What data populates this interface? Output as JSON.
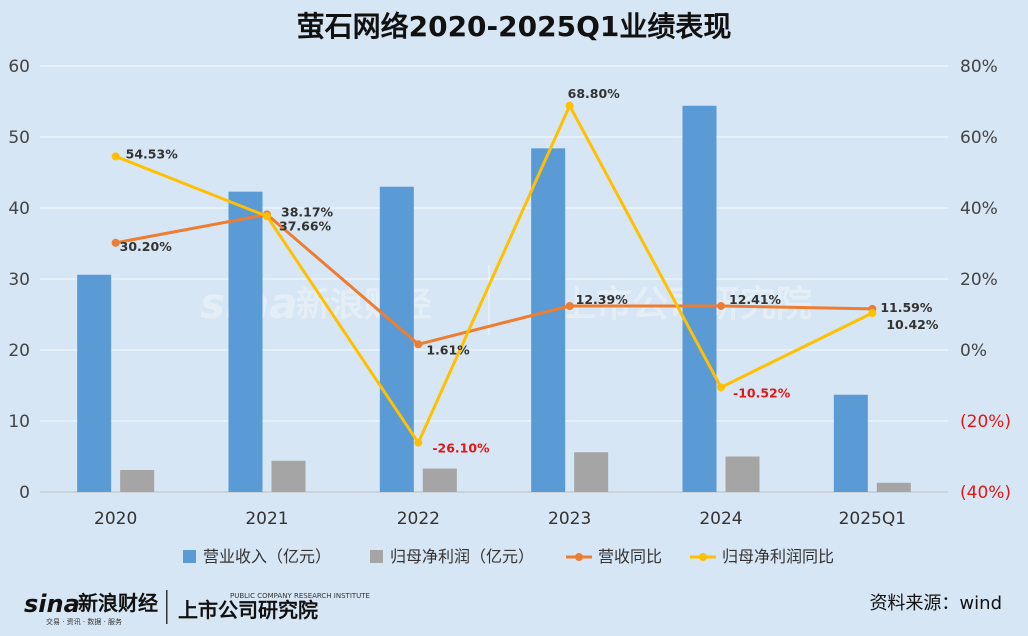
{
  "chart_data": {
    "type": "bar+line",
    "title": "萤石网络2020-2025Q1业绩表现",
    "categories": [
      "2020",
      "2021",
      "2022",
      "2023",
      "2024",
      "2025Q1"
    ],
    "left_axis": {
      "min": 0,
      "max": 60,
      "ticks": [
        "0",
        "10",
        "20",
        "30",
        "40",
        "50",
        "60"
      ]
    },
    "right_axis": {
      "min": -40,
      "max": 80,
      "ticks": [
        {
          "value": -40,
          "label": "(40%)"
        },
        {
          "value": -20,
          "label": "(20%)"
        },
        {
          "value": 0,
          "label": "0%"
        },
        {
          "value": 20,
          "label": "20%"
        },
        {
          "value": 40,
          "label": "40%"
        },
        {
          "value": 60,
          "label": "60%"
        },
        {
          "value": 80,
          "label": "80%"
        }
      ]
    },
    "grid": true,
    "legend_position": "bottom",
    "bar_series": [
      {
        "name": "营业收入（亿元）",
        "color": "#5b9bd5",
        "values": [
          30.6,
          42.3,
          43.0,
          48.4,
          54.4,
          13.7
        ]
      },
      {
        "name": "归母净利润（亿元）",
        "color": "#a5a5a5",
        "values": [
          3.1,
          4.4,
          3.3,
          5.6,
          5.0,
          1.3
        ]
      }
    ],
    "line_series": [
      {
        "name": "营收同比",
        "color": "#ed7d31",
        "values": [
          30.2,
          38.17,
          1.61,
          12.39,
          12.41,
          11.59
        ],
        "labels": [
          "30.20%",
          "38.17%",
          "1.61%",
          "12.39%",
          "12.41%",
          "11.59%"
        ]
      },
      {
        "name": "归母净利润同比",
        "color": "#ffc000",
        "values": [
          54.53,
          37.66,
          -26.1,
          68.8,
          -10.52,
          10.42
        ],
        "labels": [
          "54.53%",
          "37.66%",
          "-26.10%",
          "68.80%",
          "-10.52%",
          "10.42%"
        ]
      }
    ]
  },
  "source_text": "资料来源：wind",
  "logo": {
    "sina": "sina",
    "sina_cn": "新浪财经",
    "sina_sub": "交易 · 资讯 · 数据 · 服务",
    "research": "上市公司研究院",
    "research_en": "PUBLIC COMPANY RESEARCH INSTITUTE"
  },
  "watermark": {
    "sina": "sina",
    "sina_cn": "新浪财经",
    "research": "上市公司研究院"
  },
  "colors": {
    "negative": "#e01818",
    "background": "#d6e6f4"
  }
}
